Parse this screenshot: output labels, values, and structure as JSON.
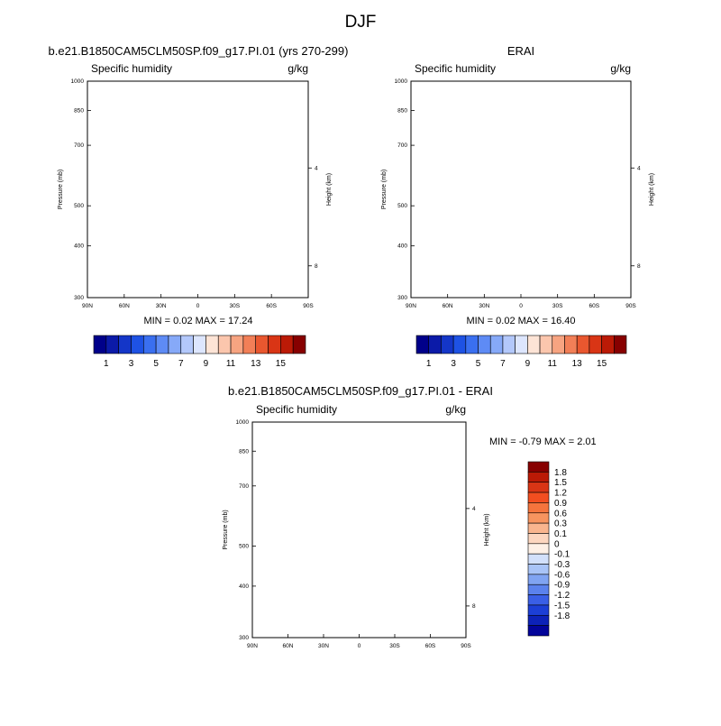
{
  "page": {
    "title": "DJF"
  },
  "panels": [
    {
      "title": "b.e21.B1850CAM5CLM50SP.f09_g17.PI.01 (yrs 270-299)",
      "variable": "Specific humidity",
      "units": "g/kg",
      "stats": "MIN =   0.02  MAX =  17.24",
      "ylabel": "Pressure (mb)",
      "y2label": "Height (km)",
      "kind": "abs",
      "max_value": 17.24,
      "min_value": 0.02,
      "missing_sh_patch": true
    },
    {
      "title": "ERAI",
      "variable": "Specific humidity",
      "units": "g/kg",
      "stats": "MIN =   0.02  MAX =  16.40",
      "ylabel": "Pressure (mb)",
      "y2label": "Height (km)",
      "kind": "abs",
      "max_value": 16.4,
      "min_value": 0.02,
      "missing_sh_patch": false
    },
    {
      "title": "b.e21.B1850CAM5CLM50SP.f09_g17.PI.01 - ERAI",
      "variable": "Specific humidity",
      "units": "g/kg",
      "stats": "MIN = -0.79  MAX =   2.01",
      "ylabel": "Pressure (mb)",
      "y2label": "Height (km)",
      "kind": "diff",
      "max_value": 2.01,
      "min_value": -0.79,
      "missing_sh_patch": true
    }
  ],
  "chart_data": [
    {
      "type": "heatmap",
      "title": "b.e21.B1850CAM5CLM50SP.f09_g17.PI.01 (yrs 270-299)",
      "subtitle": "Specific humidity",
      "units": "g/kg",
      "xlabel": "",
      "ylabel": "Pressure (mb)",
      "y2label": "Height (km)",
      "x_ticks": [
        "90N",
        "60N",
        "30N",
        "0",
        "30S",
        "60S",
        "90S"
      ],
      "y_ticks": [
        "300",
        "400",
        "500",
        "700",
        "850",
        "1000"
      ],
      "y2_ticks": [
        "8",
        "4"
      ],
      "xlim": [
        90,
        -90
      ],
      "ylim": [
        1000,
        300
      ],
      "y_scale": "log",
      "contour_levels": [
        1,
        2,
        3,
        4,
        5,
        6,
        7,
        8,
        9,
        10,
        11,
        12,
        13,
        14,
        15
      ],
      "colorbar_labels": [
        "1",
        "3",
        "5",
        "7",
        "9",
        "11",
        "13",
        "15"
      ],
      "min": 0.02,
      "max": 17.24
    },
    {
      "type": "heatmap",
      "title": "ERAI",
      "subtitle": "Specific humidity",
      "units": "g/kg",
      "xlabel": "",
      "ylabel": "Pressure (mb)",
      "y2label": "Height (km)",
      "x_ticks": [
        "90N",
        "60N",
        "30N",
        "0",
        "30S",
        "60S",
        "90S"
      ],
      "y_ticks": [
        "300",
        "400",
        "500",
        "700",
        "850",
        "1000"
      ],
      "y2_ticks": [
        "8",
        "4"
      ],
      "xlim": [
        90,
        -90
      ],
      "ylim": [
        1000,
        300
      ],
      "y_scale": "log",
      "contour_levels": [
        1,
        2,
        3,
        4,
        5,
        6,
        7,
        8,
        9,
        10,
        11,
        12,
        13,
        14,
        15
      ],
      "colorbar_labels": [
        "1",
        "3",
        "5",
        "7",
        "9",
        "11",
        "13",
        "15"
      ],
      "min": 0.02,
      "max": 16.4
    },
    {
      "type": "heatmap",
      "title": "b.e21.B1850CAM5CLM50SP.f09_g17.PI.01 - ERAI",
      "subtitle": "Specific humidity",
      "units": "g/kg",
      "xlabel": "",
      "ylabel": "Pressure (mb)",
      "y2label": "Height (km)",
      "x_ticks": [
        "90N",
        "60N",
        "30N",
        "0",
        "30S",
        "60S",
        "90S"
      ],
      "y_ticks": [
        "300",
        "400",
        "500",
        "700",
        "850",
        "1000"
      ],
      "y2_ticks": [
        "8",
        "4"
      ],
      "xlim": [
        90,
        -90
      ],
      "ylim": [
        1000,
        300
      ],
      "y_scale": "log",
      "contour_levels": [
        -1.8,
        -1.5,
        -1.2,
        -0.9,
        -0.6,
        -0.3,
        -0.1,
        0,
        0.1,
        0.3,
        0.6,
        0.9,
        1.2,
        1.5,
        1.8
      ],
      "colorbar_labels": [
        "1.8",
        "1.5",
        "1.2",
        "0.9",
        "0.6",
        "0.3",
        "0.1",
        "0",
        "-0.1",
        "-0.3",
        "-0.6",
        "-0.9",
        "-1.2",
        "-1.5",
        "-1.8"
      ],
      "min": -0.79,
      "max": 2.01
    }
  ],
  "colors": {
    "abs": [
      "#00008a",
      "#0b1aa8",
      "#1436c8",
      "#1e52e4",
      "#3a6ff0",
      "#5e8bf5",
      "#86a9f8",
      "#b3c8fb",
      "#dde6fe",
      "#fde4d6",
      "#fbc6ad",
      "#f7a481",
      "#f27f57",
      "#e9572f",
      "#d93515",
      "#bb1a06",
      "#870000"
    ],
    "diff_levels_top_to_bottom": [
      "#870000",
      "#bb1a06",
      "#d93515",
      "#f24e20",
      "#f5743d",
      "#f7945f",
      "#f9b58e",
      "#fcd6bf",
      "#fdf0e6",
      "#d2e0fb",
      "#a9c4f7",
      "#80a4f2",
      "#5b82ed",
      "#3a5fe6",
      "#1c3fd6",
      "#0d22b8",
      "#03049a"
    ]
  }
}
